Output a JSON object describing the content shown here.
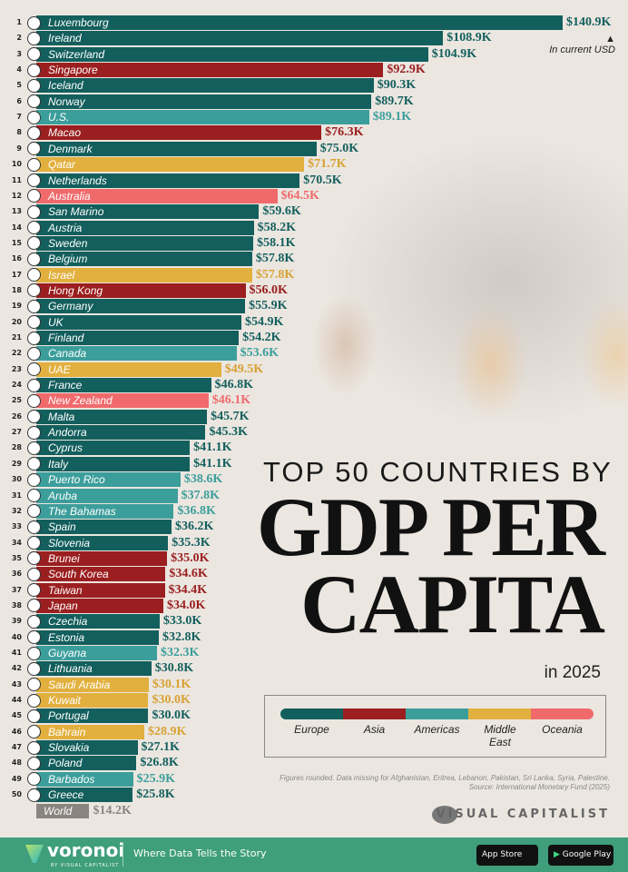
{
  "chart_data": {
    "type": "bar",
    "orientation": "horizontal",
    "title_line1": "TOP 50 COUNTRIES BY",
    "title_line2": "GDP PER",
    "title_line3": "CAPITA",
    "subtitle": "in 2025",
    "unit_note": "In current USD",
    "xlim": [
      0,
      140.9
    ],
    "grid": false,
    "region_colors": {
      "Europe": "#135f5d",
      "Asia": "#9b1f20",
      "Americas": "#3c9e9b",
      "Middle East": "#e2b03e",
      "Oceania": "#f06a6c",
      "World": "#8a8580"
    },
    "label_colors": {
      "Europe": "#135f5d",
      "Asia": "#9b1f20",
      "Americas": "#3c9e9b",
      "Middle East": "#d8a233",
      "Oceania": "#f06a6c",
      "World": "#8a8580"
    },
    "rows": [
      {
        "rank": "1",
        "country": "Luxembourg",
        "value": 140.9,
        "label": "$140.9K",
        "region": "Europe"
      },
      {
        "rank": "2",
        "country": "Ireland",
        "value": 108.9,
        "label": "$108.9K",
        "region": "Europe"
      },
      {
        "rank": "3",
        "country": "Switzerland",
        "value": 104.9,
        "label": "$104.9K",
        "region": "Europe"
      },
      {
        "rank": "4",
        "country": "Singapore",
        "value": 92.9,
        "label": "$92.9K",
        "region": "Asia"
      },
      {
        "rank": "5",
        "country": "Iceland",
        "value": 90.3,
        "label": "$90.3K",
        "region": "Europe"
      },
      {
        "rank": "6",
        "country": "Norway",
        "value": 89.7,
        "label": "$89.7K",
        "region": "Europe"
      },
      {
        "rank": "7",
        "country": "U.S.",
        "value": 89.1,
        "label": "$89.1K",
        "region": "Americas"
      },
      {
        "rank": "8",
        "country": "Macao",
        "value": 76.3,
        "label": "$76.3K",
        "region": "Asia"
      },
      {
        "rank": "9",
        "country": "Denmark",
        "value": 75.0,
        "label": "$75.0K",
        "region": "Europe"
      },
      {
        "rank": "10",
        "country": "Qatar",
        "value": 71.7,
        "label": "$71.7K",
        "region": "Middle East"
      },
      {
        "rank": "11",
        "country": "Netherlands",
        "value": 70.5,
        "label": "$70.5K",
        "region": "Europe"
      },
      {
        "rank": "12",
        "country": "Australia",
        "value": 64.5,
        "label": "$64.5K",
        "region": "Oceania"
      },
      {
        "rank": "13",
        "country": "San Marino",
        "value": 59.6,
        "label": "$59.6K",
        "region": "Europe"
      },
      {
        "rank": "14",
        "country": "Austria",
        "value": 58.2,
        "label": "$58.2K",
        "region": "Europe"
      },
      {
        "rank": "15",
        "country": "Sweden",
        "value": 58.1,
        "label": "$58.1K",
        "region": "Europe"
      },
      {
        "rank": "16",
        "country": "Belgium",
        "value": 57.8,
        "label": "$57.8K",
        "region": "Europe"
      },
      {
        "rank": "17",
        "country": "Israel",
        "value": 57.8,
        "label": "$57.8K",
        "region": "Middle East"
      },
      {
        "rank": "18",
        "country": "Hong Kong",
        "value": 56.0,
        "label": "$56.0K",
        "region": "Asia"
      },
      {
        "rank": "19",
        "country": "Germany",
        "value": 55.9,
        "label": "$55.9K",
        "region": "Europe"
      },
      {
        "rank": "20",
        "country": "UK",
        "value": 54.9,
        "label": "$54.9K",
        "region": "Europe"
      },
      {
        "rank": "21",
        "country": "Finland",
        "value": 54.2,
        "label": "$54.2K",
        "region": "Europe"
      },
      {
        "rank": "22",
        "country": "Canada",
        "value": 53.6,
        "label": "$53.6K",
        "region": "Americas"
      },
      {
        "rank": "23",
        "country": "UAE",
        "value": 49.5,
        "label": "$49.5K",
        "region": "Middle East"
      },
      {
        "rank": "24",
        "country": "France",
        "value": 46.8,
        "label": "$46.8K",
        "region": "Europe"
      },
      {
        "rank": "25",
        "country": "New Zealand",
        "value": 46.1,
        "label": "$46.1K",
        "region": "Oceania"
      },
      {
        "rank": "26",
        "country": "Malta",
        "value": 45.7,
        "label": "$45.7K",
        "region": "Europe"
      },
      {
        "rank": "27",
        "country": "Andorra",
        "value": 45.3,
        "label": "$45.3K",
        "region": "Europe"
      },
      {
        "rank": "28",
        "country": "Cyprus",
        "value": 41.1,
        "label": "$41.1K",
        "region": "Europe"
      },
      {
        "rank": "29",
        "country": "Italy",
        "value": 41.1,
        "label": "$41.1K",
        "region": "Europe"
      },
      {
        "rank": "30",
        "country": "Puerto Rico",
        "value": 38.6,
        "label": "$38.6K",
        "region": "Americas"
      },
      {
        "rank": "31",
        "country": "Aruba",
        "value": 37.8,
        "label": "$37.8K",
        "region": "Americas"
      },
      {
        "rank": "32",
        "country": "The Bahamas",
        "value": 36.8,
        "label": "$36.8K",
        "region": "Americas"
      },
      {
        "rank": "33",
        "country": "Spain",
        "value": 36.2,
        "label": "$36.2K",
        "region": "Europe"
      },
      {
        "rank": "34",
        "country": "Slovenia",
        "value": 35.3,
        "label": "$35.3K",
        "region": "Europe"
      },
      {
        "rank": "35",
        "country": "Brunei",
        "value": 35.0,
        "label": "$35.0K",
        "region": "Asia"
      },
      {
        "rank": "36",
        "country": "South Korea",
        "value": 34.6,
        "label": "$34.6K",
        "region": "Asia"
      },
      {
        "rank": "37",
        "country": "Taiwan",
        "value": 34.4,
        "label": "$34.4K",
        "region": "Asia"
      },
      {
        "rank": "38",
        "country": "Japan",
        "value": 34.0,
        "label": "$34.0K",
        "region": "Asia"
      },
      {
        "rank": "39",
        "country": "Czechia",
        "value": 33.0,
        "label": "$33.0K",
        "region": "Europe"
      },
      {
        "rank": "40",
        "country": "Estonia",
        "value": 32.8,
        "label": "$32.8K",
        "region": "Europe"
      },
      {
        "rank": "41",
        "country": "Guyana",
        "value": 32.3,
        "label": "$32.3K",
        "region": "Americas"
      },
      {
        "rank": "42",
        "country": "Lithuania",
        "value": 30.8,
        "label": "$30.8K",
        "region": "Europe"
      },
      {
        "rank": "43",
        "country": "Saudi Arabia",
        "value": 30.1,
        "label": "$30.1K",
        "region": "Middle East"
      },
      {
        "rank": "44",
        "country": "Kuwait",
        "value": 30.0,
        "label": "$30.0K",
        "region": "Middle East"
      },
      {
        "rank": "45",
        "country": "Portugal",
        "value": 30.0,
        "label": "$30.0K",
        "region": "Europe"
      },
      {
        "rank": "46",
        "country": "Bahrain",
        "value": 28.9,
        "label": "$28.9K",
        "region": "Middle East"
      },
      {
        "rank": "47",
        "country": "Slovakia",
        "value": 27.1,
        "label": "$27.1K",
        "region": "Europe"
      },
      {
        "rank": "48",
        "country": "Poland",
        "value": 26.8,
        "label": "$26.8K",
        "region": "Europe"
      },
      {
        "rank": "49",
        "country": "Barbados",
        "value": 25.9,
        "label": "$25.9K",
        "region": "Americas"
      },
      {
        "rank": "50",
        "country": "Greece",
        "value": 25.8,
        "label": "$25.8K",
        "region": "Europe"
      },
      {
        "rank": "",
        "country": "World",
        "value": 14.2,
        "label": "$14.2K",
        "region": "World"
      }
    ],
    "legend": [
      {
        "label": "Europe",
        "color": "#135f5d"
      },
      {
        "label": "Asia",
        "color": "#9b1f20"
      },
      {
        "label": "Americas",
        "color": "#3c9e9b"
      },
      {
        "label": "Middle East",
        "color": "#e2b03e"
      },
      {
        "label": "Oceania",
        "color": "#f06a6c"
      }
    ]
  },
  "notes": {
    "line1": "Figures rounded. Data missing for Afghanistan, Eritrea, Lebanon, Pakistan, Sri Lanka, Syria, Palestine.",
    "line2": "Source: International Monetary Fund (2025)"
  },
  "brand": {
    "publisher": "VISUAL CAPITALIST"
  },
  "footer": {
    "logo": "voronoi",
    "logo_sub": "BY VISUAL CAPITALIST",
    "tagline": "Where Data Tells the Story",
    "app_store": "App Store",
    "google_play": "Google Play",
    "background": "#3f9e7b"
  }
}
